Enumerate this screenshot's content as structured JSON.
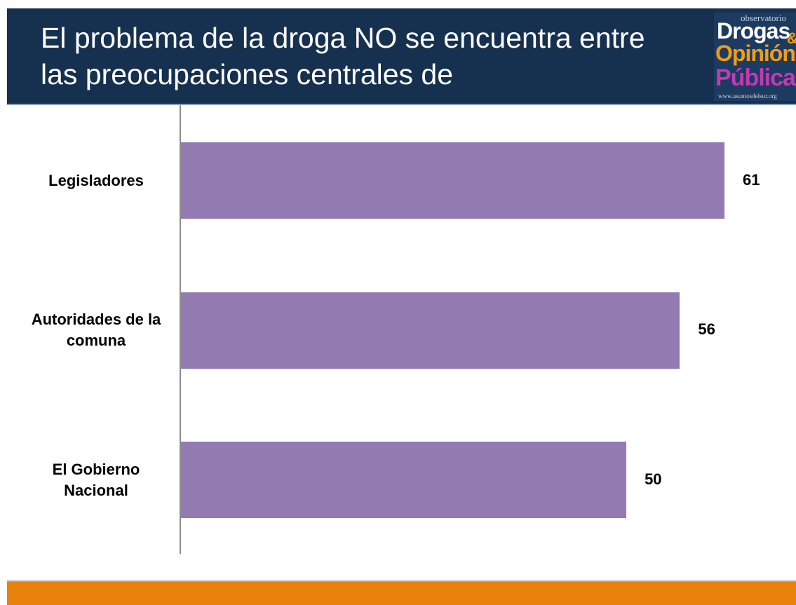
{
  "header": {
    "title": "El problema de la droga NO se encuentra entre las preocupaciones centrales de"
  },
  "logo": {
    "top": "observatorio",
    "line1": "Drogas",
    "amp": "&",
    "line2": "Opinión",
    "line3": "Pública",
    "url": "www.asuntosdelsur.org"
  },
  "chart_data": {
    "type": "bar",
    "orientation": "horizontal",
    "categories": [
      "Legisladores",
      "Autoridades de la comuna",
      "El Gobierno Nacional"
    ],
    "values": [
      61,
      56,
      50
    ],
    "color": "#937bb2"
  }
}
